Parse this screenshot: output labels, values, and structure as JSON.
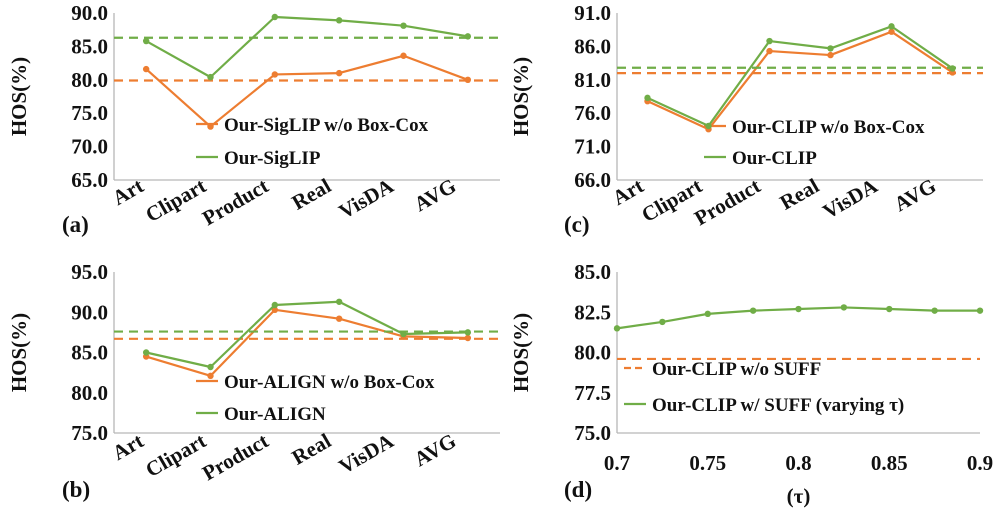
{
  "colors": {
    "orange": "#ED7D31",
    "green": "#70AD47",
    "axis": "#B7B7B7",
    "text": "#111111"
  },
  "chart_data": [
    {
      "id": "a",
      "type": "line",
      "panel_label": "(a)",
      "ylabel": "HOS(%)",
      "xlabel": "",
      "categories": [
        "Art",
        "Clipart",
        "Product",
        "Real",
        "VisDA",
        "AVG"
      ],
      "ylim": [
        65.0,
        90.0
      ],
      "yticks": [
        "65.0",
        "70.0",
        "75.0",
        "80.0",
        "85.0",
        "90.0"
      ],
      "series": [
        {
          "name": "Our-SigLIP w/o Box-Cox",
          "color": "orange",
          "values": [
            81.6,
            73.0,
            80.8,
            81.0,
            83.6,
            80.0
          ],
          "reference": 79.9
        },
        {
          "name": "Our-SigLIP",
          "color": "green",
          "values": [
            85.8,
            80.4,
            89.4,
            88.9,
            88.1,
            86.5
          ],
          "reference": 86.3
        }
      ],
      "legend": "bottom-right"
    },
    {
      "id": "b",
      "type": "line",
      "panel_label": "(b)",
      "ylabel": "HOS(%)",
      "xlabel": "",
      "categories": [
        "Art",
        "Clipart",
        "Product",
        "Real",
        "VisDA",
        "AVG"
      ],
      "ylim": [
        75.0,
        95.0
      ],
      "yticks": [
        "75.0",
        "80.0",
        "85.0",
        "90.0",
        "95.0"
      ],
      "series": [
        {
          "name": "Our-ALIGN w/o Box-Cox",
          "color": "orange",
          "values": [
            84.5,
            82.1,
            90.3,
            89.2,
            87.0,
            86.8
          ],
          "reference": 86.7
        },
        {
          "name": "Our-ALIGN",
          "color": "green",
          "values": [
            85.0,
            83.2,
            90.9,
            91.3,
            87.3,
            87.5
          ],
          "reference": 87.6
        }
      ],
      "legend": "bottom-right"
    },
    {
      "id": "c",
      "type": "line",
      "panel_label": "(c)",
      "ylabel": "HOS(%)",
      "xlabel": "",
      "categories": [
        "Art",
        "Clipart",
        "Product",
        "Real",
        "VisDA",
        "AVG"
      ],
      "ylim": [
        66.0,
        91.0
      ],
      "yticks": [
        "66.0",
        "71.0",
        "76.0",
        "81.0",
        "86.0",
        "91.0"
      ],
      "series": [
        {
          "name": "Our-CLIP w/o Box-Cox",
          "color": "orange",
          "values": [
            77.8,
            73.6,
            85.3,
            84.7,
            88.2,
            82.1
          ],
          "reference": 82.0
        },
        {
          "name": "Our-CLIP",
          "color": "green",
          "values": [
            78.3,
            74.1,
            86.8,
            85.7,
            89.0,
            82.7
          ],
          "reference": 82.8
        }
      ],
      "legend": "bottom-right"
    },
    {
      "id": "d",
      "type": "line",
      "panel_label": "(d)",
      "ylabel": "HOS(%)",
      "xlabel": "(τ)",
      "x": [
        0.7,
        0.725,
        0.75,
        0.775,
        0.8,
        0.825,
        0.85,
        0.875,
        0.9
      ],
      "xlim": [
        0.7,
        0.9
      ],
      "xticks": [
        "0.7",
        "0.75",
        "0.8",
        "0.85",
        "0.9"
      ],
      "ylim": [
        75.0,
        85.0
      ],
      "yticks": [
        "75.0",
        "77.5",
        "80.0",
        "82.5",
        "85.0"
      ],
      "series": [
        {
          "name": "Our-CLIP w/o SUFF",
          "color": "orange",
          "constant": 79.6
        },
        {
          "name": "Our-CLIP w/ SUFF (varying τ)",
          "color": "green",
          "values": [
            81.5,
            81.9,
            82.4,
            82.6,
            82.7,
            82.8,
            82.7,
            82.6,
            82.6
          ]
        }
      ],
      "legend": "bottom-right"
    }
  ]
}
